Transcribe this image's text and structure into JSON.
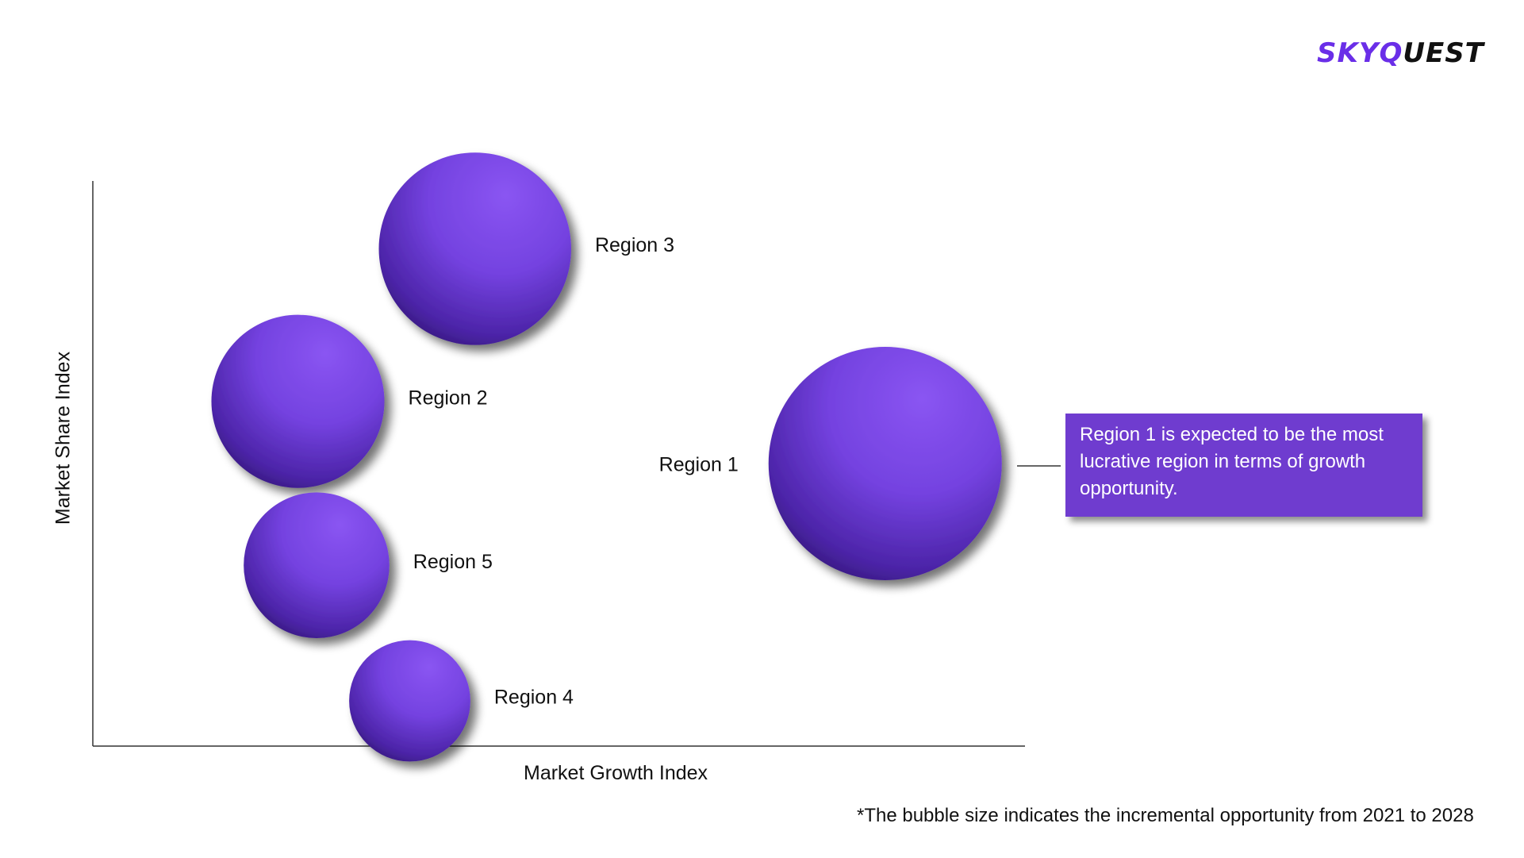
{
  "brand": {
    "logo_part1": "SKYQ",
    "logo_part2": "UEST"
  },
  "chart_data": {
    "type": "scatter",
    "title": "",
    "xlabel": "Market Growth Index",
    "ylabel": "Market Share Index",
    "x_ticks": [],
    "y_ticks": [],
    "xlim": [
      0,
      100
    ],
    "ylim": [
      0,
      100
    ],
    "grid": false,
    "bubble_color": "#7b4be8",
    "bubble_dark": "#2a1466",
    "series": [
      {
        "points": [
          {
            "label": "Region 1",
            "x": 85,
            "y": 50,
            "size": 100
          },
          {
            "label": "Region 2",
            "x": 22,
            "y": 61,
            "size": 55
          },
          {
            "label": "Region 3",
            "x": 41,
            "y": 88,
            "size": 68
          },
          {
            "label": "Region 4",
            "x": 34,
            "y": 8,
            "size": 27
          },
          {
            "label": "Region 5",
            "x": 24,
            "y": 32,
            "size": 39
          }
        ]
      }
    ],
    "callout": {
      "target": "Region 1",
      "text": "Region 1 is expected to be the most lucrative region in terms of growth opportunity."
    },
    "footnote": "*The bubble size indicates the incremental opportunity from 2021 to 2028"
  }
}
